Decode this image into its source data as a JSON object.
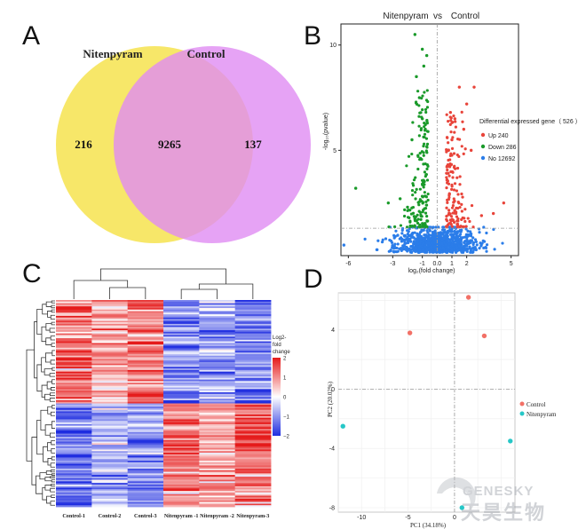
{
  "panels": {
    "a": "A",
    "b": "B",
    "c": "C",
    "d": "D"
  },
  "chart_data": [
    {
      "type": "venn",
      "sets": [
        "Nitenpyram",
        "Control"
      ],
      "only_left": 216,
      "overlap": 9265,
      "only_right": 137,
      "colors": {
        "left": "#f7e769",
        "right": "#e08cf3",
        "overlap": "#e8879d"
      }
    },
    {
      "type": "scatter",
      "title_left": "Nitenpyram",
      "title_mid": "vs",
      "title_right": "Control",
      "xlabel": "log₂(fold change)",
      "ylabel": "-log₁₀(pvalue)",
      "xticks": [
        -6,
        -3,
        -1,
        0,
        1,
        2,
        5
      ],
      "xtick_labels": [
        "-6",
        "-3",
        "-1",
        "0.0",
        "1",
        "2",
        "5"
      ],
      "yticks": [
        5,
        10
      ],
      "xlim": [
        -6.5,
        5.5
      ],
      "ylim": [
        0,
        11
      ],
      "threshold_y": 1.3,
      "legend_title": "Differential expressed gene（ 526 ）",
      "legend_position": "right",
      "series": [
        {
          "name": "Up 240",
          "color": "#e8443a"
        },
        {
          "name": "Down 286",
          "color": "#1a9a2a"
        },
        {
          "name": "No 12692",
          "color": "#2b7de9"
        }
      ],
      "highlight_points": {
        "up": [
          [
            1.5,
            8.0
          ],
          [
            2.5,
            8.0
          ],
          [
            2.0,
            7.2
          ],
          [
            0.9,
            6.8
          ],
          [
            1.0,
            5.5
          ],
          [
            2.3,
            5.0
          ],
          [
            1.8,
            6.0
          ],
          [
            1.2,
            6.5
          ],
          [
            4.5,
            2.5
          ],
          [
            3.8,
            2.0
          ],
          [
            3.0,
            1.9
          ]
        ],
        "down": [
          [
            -1.5,
            10.5
          ],
          [
            -1.0,
            9.8
          ],
          [
            -0.7,
            9.5
          ],
          [
            -0.9,
            9.0
          ],
          [
            -1.4,
            8.5
          ],
          [
            -1.2,
            7.5
          ],
          [
            -1.0,
            6.5
          ],
          [
            -1.7,
            5.5
          ],
          [
            -0.8,
            6.0
          ],
          [
            -5.5,
            3.2
          ],
          [
            -3.3,
            2.5
          ],
          [
            -2.5,
            2.7
          ],
          [
            -2.0,
            2.3
          ]
        ],
        "no": [
          [
            -6.3,
            0.5
          ]
        ]
      }
    },
    {
      "type": "heatmap",
      "columns": [
        "Control-1",
        "Control-2",
        "Control-3",
        "Nitenpyram -1",
        "Nitenpyram -2",
        "Nitenpyram-3"
      ],
      "legend_title": "Log2-fold change",
      "colorbar_ticks": [
        2,
        1,
        0,
        -1,
        -2
      ],
      "colorbar_tick_labels": [
        "2",
        "1",
        "0",
        "−1",
        "−2"
      ],
      "color_scale": {
        "low": "#1f2de0",
        "mid": "#ffffff",
        "high": "#e51a1a"
      },
      "rows": 526
    },
    {
      "type": "scatter",
      "title": "",
      "xlabel": "PC1 (34.18%)",
      "ylabel": "PC2 (20.02%)",
      "xticks": [
        -10,
        -5,
        0
      ],
      "xtick_labels": [
        "-10",
        "-5",
        "0"
      ],
      "yticks": [
        4,
        0,
        -4,
        -8
      ],
      "ytick_labels": [
        "4",
        "0",
        "-4",
        "-8"
      ],
      "xlim": [
        -12.5,
        6.5
      ],
      "ylim": [
        -8.3,
        6.5
      ],
      "grid": true,
      "legend_position": "right",
      "series": [
        {
          "name": "Control",
          "color": "#f27066",
          "points": [
            [
              1.5,
              6.2
            ],
            [
              -4.8,
              3.8
            ],
            [
              3.2,
              3.6
            ]
          ]
        },
        {
          "name": "Nitenpyram",
          "color": "#26c7c7",
          "points": [
            [
              -12.0,
              -2.5
            ],
            [
              6.0,
              -3.5
            ],
            [
              0.8,
              -8.0
            ]
          ]
        }
      ]
    }
  ],
  "watermark": {
    "en": "GENESKY",
    "zh": "天昊生物"
  }
}
